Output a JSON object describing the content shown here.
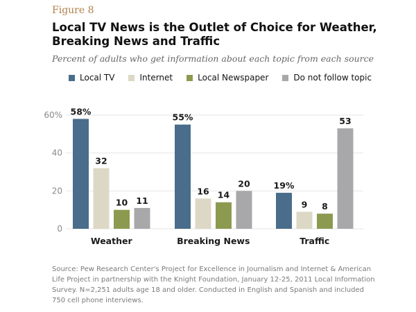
{
  "figure_label": "Figure 8",
  "title": "Local TV News is the Outlet of Choice for Weather, Breaking News and Traffic",
  "subtitle": "Percent of adults who get information about each topic from each source",
  "source": "Source: Pew Research Center's Project for Excellence in Journalism and Internet & American Life Project in partnership with the Knight Foundation, January 12-25, 2011 Local Information Survey. N=2,251 adults age 18 and older. Conducted in English and Spanish and included 750 cell phone interviews.",
  "colors": {
    "local_tv": "#496d8a",
    "internet": "#ddd8c6",
    "local_newspaper": "#8c9a50",
    "not_follow": "#a8a8aa",
    "tick_text": "#8a8a8a",
    "grid": "#e6e6e6"
  },
  "chart_data": {
    "type": "bar",
    "title": "Local TV News is the Outlet of Choice for Weather, Breaking News and Traffic",
    "xlabel": "",
    "ylabel": "",
    "ylim": [
      0,
      60
    ],
    "yticks": [
      "0",
      "20",
      "40",
      "60%"
    ],
    "grid": true,
    "legend_position": "top",
    "categories": [
      "Weather",
      "Breaking News",
      "Traffic"
    ],
    "series": [
      {
        "name": "Local TV",
        "values": [
          58,
          55,
          19
        ],
        "labels": [
          "58%",
          "55%",
          "19%"
        ]
      },
      {
        "name": "Internet",
        "values": [
          32,
          16,
          9
        ],
        "labels": [
          "32",
          "16",
          "9"
        ]
      },
      {
        "name": "Local Newspaper",
        "values": [
          10,
          14,
          8
        ],
        "labels": [
          "10",
          "14",
          "8"
        ]
      },
      {
        "name": "Do not follow topic",
        "values": [
          11,
          20,
          53
        ],
        "labels": [
          "11",
          "20",
          "53"
        ]
      }
    ]
  }
}
